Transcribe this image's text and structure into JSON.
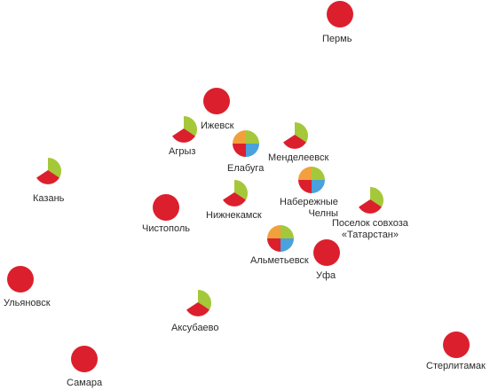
{
  "colors": {
    "red": "#dc1f2d",
    "orange": "#f2a03c",
    "green": "#a5c83a",
    "blue": "#4aa1db"
  },
  "legend_segments": [
    "red",
    "orange",
    "green",
    "blue"
  ],
  "cities": [
    {
      "id": "perm",
      "name": [
        "Пермь"
      ],
      "icon": "red-dot"
    },
    {
      "id": "izhevsk",
      "name": [
        "Ижевск"
      ],
      "icon": "red-dot"
    },
    {
      "id": "agryz",
      "name": [
        "Агрыз"
      ],
      "icon": "pie-three"
    },
    {
      "id": "elabuga",
      "name": [
        "Елабуга"
      ],
      "icon": "pie-four"
    },
    {
      "id": "mendeleevsk",
      "name": [
        "Менделеевск"
      ],
      "icon": "pie-three"
    },
    {
      "id": "kazan",
      "name": [
        "Казань"
      ],
      "icon": "pie-three"
    },
    {
      "id": "nizhnekamsk",
      "name": [
        "Нижнекамск"
      ],
      "icon": "pie-three"
    },
    {
      "id": "chistopol",
      "name": [
        "Чистополь"
      ],
      "icon": "red-dot"
    },
    {
      "id": "naberezhnye-chelny",
      "name": [
        "Набережные",
        "Челны"
      ],
      "icon": "pie-four"
    },
    {
      "id": "poselok-tatarstan",
      "name": [
        "Поселок совхоза",
        "«Татарстан»"
      ],
      "icon": "pie-three"
    },
    {
      "id": "almetyevsk",
      "name": [
        "Альметьевск"
      ],
      "icon": "pie-four"
    },
    {
      "id": "ufa",
      "name": [
        "Уфа"
      ],
      "icon": "red-dot"
    },
    {
      "id": "ulyanovsk",
      "name": [
        "Ульяновск"
      ],
      "icon": "red-dot"
    },
    {
      "id": "aksubaevo",
      "name": [
        "Аксубаево"
      ],
      "icon": "pie-three"
    },
    {
      "id": "samara",
      "name": [
        "Самара"
      ],
      "icon": "red-dot"
    },
    {
      "id": "sterlitamak",
      "name": [
        "Стерлитамак"
      ],
      "icon": "red-dot"
    }
  ]
}
